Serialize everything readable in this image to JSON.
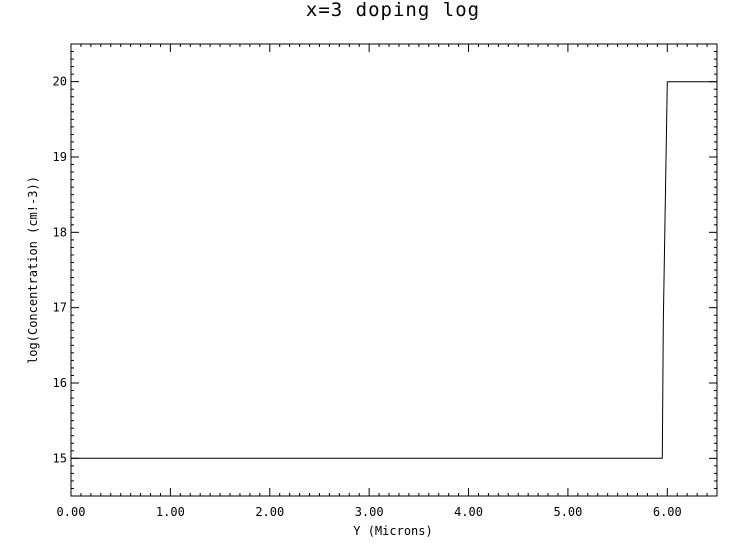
{
  "chart_data": {
    "type": "line",
    "title": "x=3 doping log",
    "xlabel": "Y (Microns)",
    "ylabel": "log(Concentration (cm!-3))",
    "xlim": [
      0,
      6.5
    ],
    "ylim": [
      14.5,
      20.5
    ],
    "x_ticks": [
      0,
      1,
      2,
      3,
      4,
      5,
      6
    ],
    "x_tick_labels": [
      "0.00",
      "1.00",
      "2.00",
      "3.00",
      "4.00",
      "5.00",
      "6.00"
    ],
    "y_ticks": [
      15,
      16,
      17,
      18,
      19,
      20
    ],
    "y_tick_labels": [
      "15",
      "16",
      "17",
      "18",
      "19",
      "20"
    ],
    "grid": false,
    "legend": "none",
    "series": [
      {
        "x": [
          0,
          5.95,
          5.96,
          6.0,
          6.5
        ],
        "y": [
          15,
          15,
          16.8,
          20,
          20
        ]
      }
    ]
  }
}
